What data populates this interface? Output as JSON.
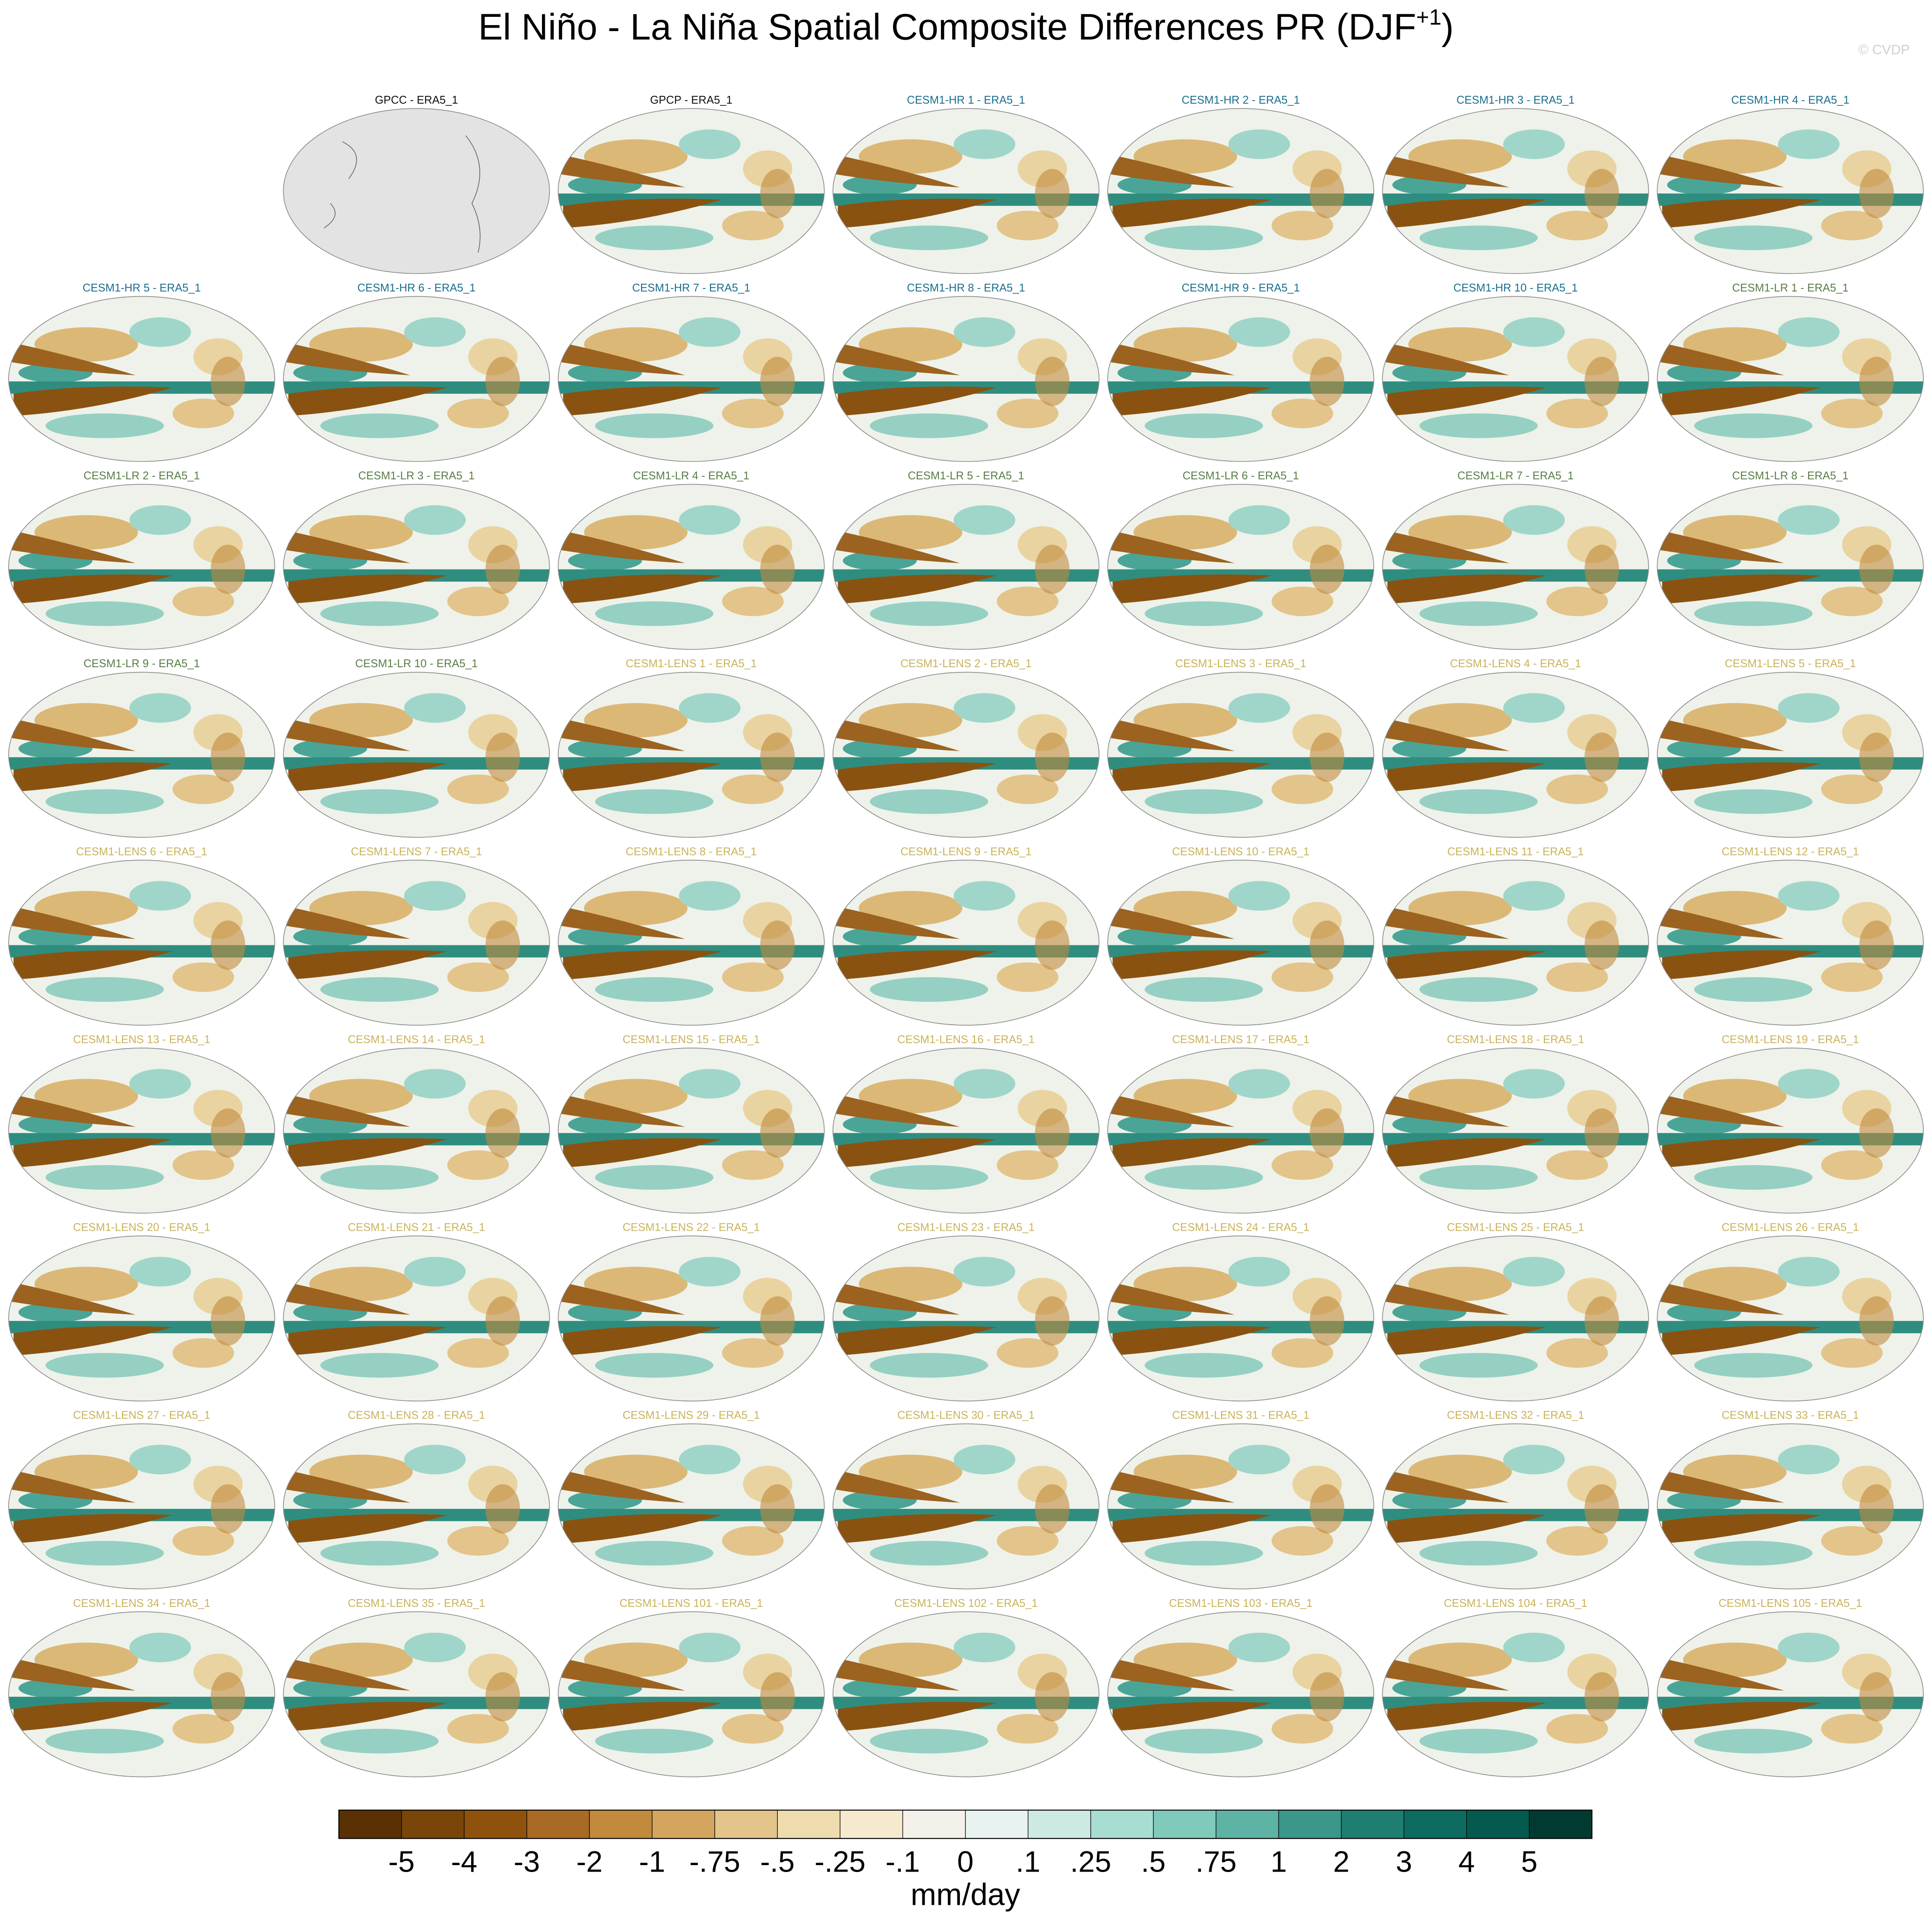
{
  "header": {
    "title": "El Niño - La Niña Spatial Composite Differences PR (DJF",
    "title_superscript": "+1",
    "title_end": ")",
    "watermark": "© CVDP"
  },
  "panel_groups": [
    {
      "color": "#111111",
      "labels": [
        "GPCC - ERA5_1",
        "GPCP - ERA5_1"
      ]
    },
    {
      "color": "#1b6f8e",
      "labels": [
        "CESM1-HR 1 - ERA5_1",
        "CESM1-HR 2 - ERA5_1",
        "CESM1-HR 3 - ERA5_1",
        "CESM1-HR 4 - ERA5_1",
        "CESM1-HR 5 - ERA5_1",
        "CESM1-HR 6 - ERA5_1",
        "CESM1-HR 7 - ERA5_1",
        "CESM1-HR 8 - ERA5_1",
        "CESM1-HR 9 - ERA5_1",
        "CESM1-HR 10 - ERA5_1"
      ]
    },
    {
      "color": "#5a7d48",
      "labels": [
        "CESM1-LR 1 - ERA5_1",
        "CESM1-LR 2 - ERA5_1",
        "CESM1-LR 3 - ERA5_1",
        "CESM1-LR 4 - ERA5_1",
        "CESM1-LR 5 - ERA5_1",
        "CESM1-LR 6 - ERA5_1",
        "CESM1-LR 7 - ERA5_1",
        "CESM1-LR 8 - ERA5_1",
        "CESM1-LR 9 - ERA5_1",
        "CESM1-LR 10 - ERA5_1"
      ]
    },
    {
      "color": "#c9b35c",
      "labels": [
        "CESM1-LENS 1 - ERA5_1",
        "CESM1-LENS 2 - ERA5_1",
        "CESM1-LENS 3 - ERA5_1",
        "CESM1-LENS 4 - ERA5_1",
        "CESM1-LENS 5 - ERA5_1",
        "CESM1-LENS 6 - ERA5_1",
        "CESM1-LENS 7 - ERA5_1",
        "CESM1-LENS 8 - ERA5_1",
        "CESM1-LENS 9 - ERA5_1",
        "CESM1-LENS 10 - ERA5_1",
        "CESM1-LENS 11 - ERA5_1",
        "CESM1-LENS 12 - ERA5_1",
        "CESM1-LENS 13 - ERA5_1",
        "CESM1-LENS 14 - ERA5_1",
        "CESM1-LENS 15 - ERA5_1",
        "CESM1-LENS 16 - ERA5_1",
        "CESM1-LENS 17 - ERA5_1",
        "CESM1-LENS 18 - ERA5_1",
        "CESM1-LENS 19 - ERA5_1",
        "CESM1-LENS 20 - ERA5_1",
        "CESM1-LENS 21 - ERA5_1",
        "CESM1-LENS 22 - ERA5_1",
        "CESM1-LENS 23 - ERA5_1",
        "CESM1-LENS 24 - ERA5_1",
        "CESM1-LENS 25 - ERA5_1",
        "CESM1-LENS 26 - ERA5_1",
        "CESM1-LENS 27 - ERA5_1",
        "CESM1-LENS 28 - ERA5_1",
        "CESM1-LENS 29 - ERA5_1",
        "CESM1-LENS 30 - ERA5_1",
        "CESM1-LENS 31 - ERA5_1",
        "CESM1-LENS 32 - ERA5_1",
        "CESM1-LENS 33 - ERA5_1",
        "CESM1-LENS 34 - ERA5_1",
        "CESM1-LENS 35 - ERA5_1",
        "CESM1-LENS 101 - ERA5_1",
        "CESM1-LENS 102 - ERA5_1",
        "CESM1-LENS 103 - ERA5_1",
        "CESM1-LENS 104 - ERA5_1",
        "CESM1-LENS 105 - ERA5_1"
      ]
    }
  ],
  "colorbar": {
    "colors": [
      "#5a3005",
      "#7a4509",
      "#8f520d",
      "#a86a24",
      "#c28a3c",
      "#d4a55e",
      "#e3c48a",
      "#eedcae",
      "#f5ead0",
      "#f4f1ea",
      "#e8f2f0",
      "#cde9e3",
      "#a8ddd2",
      "#80cabc",
      "#5db3a4",
      "#3a978a",
      "#1f7e72",
      "#0e6b60",
      "#055a4f",
      "#013a30"
    ],
    "ticks": [
      -5,
      -4,
      -3,
      -2,
      -1,
      {
        "value": -0.75,
        "label": "-.75"
      },
      {
        "value": -0.5,
        "label": "-.5"
      },
      {
        "value": -0.25,
        "label": "-.25"
      },
      {
        "value": -0.1,
        "label": "-.1"
      },
      0,
      {
        "value": 0.1,
        "label": ".1"
      },
      {
        "value": 0.25,
        "label": ".25"
      },
      {
        "value": 0.5,
        "label": ".5"
      },
      {
        "value": 0.75,
        "label": ".75"
      },
      1,
      2,
      3,
      4,
      5
    ],
    "unit": "mm/day"
  }
}
